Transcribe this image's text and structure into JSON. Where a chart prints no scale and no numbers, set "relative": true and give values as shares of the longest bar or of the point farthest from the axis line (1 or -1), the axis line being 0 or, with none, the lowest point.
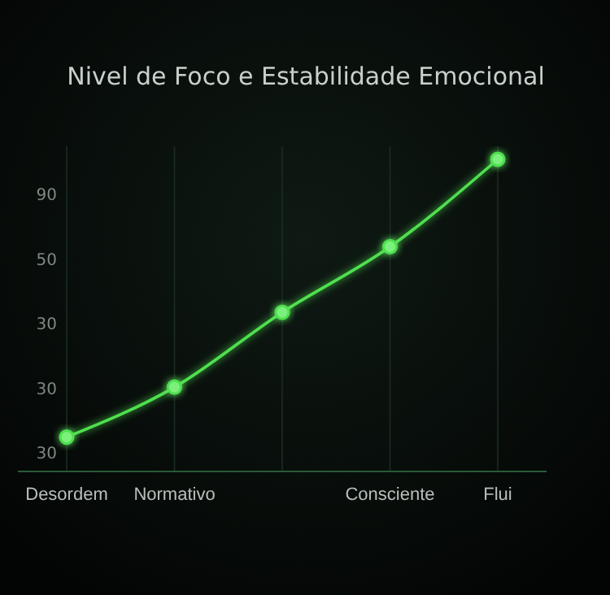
{
  "chart_data": {
    "type": "line",
    "title": "Nivel de Foco e Estabilidade Emocional",
    "categories": [
      "Desordem",
      "Normativo",
      null,
      "Consciente",
      "Flui"
    ],
    "series": [
      {
        "color": "#4fe04f",
        "values": [
          0.11,
          0.27,
          0.51,
          0.72,
          1
        ]
      }
    ],
    "relative": true,
    "annotations": [
      "90",
      "50",
      "30",
      "30",
      "30"
    ],
    "grid": "x",
    "marker": "circle",
    "line_style": "solid"
  }
}
